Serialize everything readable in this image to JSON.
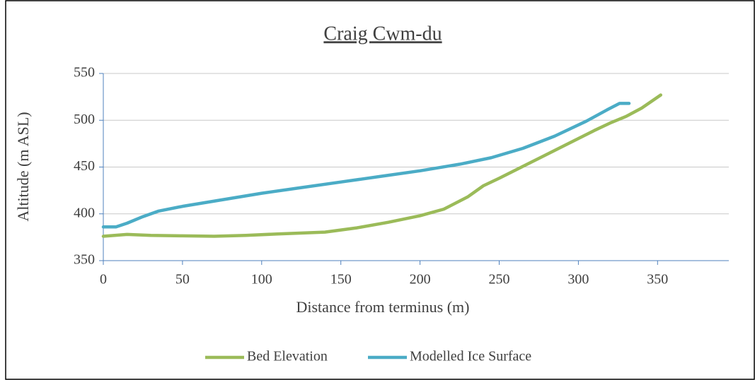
{
  "chart_data": {
    "type": "line",
    "title": "Craig Cwm-du",
    "x_label": "Distance from terminus (m)",
    "y_label": "Altitude (m ASL)",
    "xlim": [
      0,
      395
    ],
    "xticks": [
      0,
      50,
      100,
      150,
      200,
      250,
      300,
      350
    ],
    "ylim": [
      350,
      550
    ],
    "yticks": [
      350,
      400,
      450,
      500,
      550
    ],
    "grid": true,
    "legend": "bottom",
    "series": [
      {
        "name": "Bed Elevation",
        "color": "#9bbb59",
        "x": [
          0,
          15,
          30,
          50,
          70,
          90,
          110,
          140,
          160,
          180,
          200,
          215,
          230,
          240,
          250,
          270,
          290,
          310,
          320,
          330,
          340,
          352
        ],
        "values": [
          376,
          378,
          377,
          376.5,
          376,
          377,
          378.5,
          380.5,
          385,
          391,
          398,
          405,
          418,
          430,
          438,
          455,
          472,
          489,
          497,
          504,
          513,
          527
        ]
      },
      {
        "name": "Modelled Ice Surface",
        "color": "#4bacc6",
        "x": [
          0,
          8,
          15,
          25,
          35,
          50,
          75,
          100,
          125,
          150,
          175,
          200,
          225,
          245,
          265,
          285,
          305,
          318,
          326,
          332
        ],
        "values": [
          386,
          386,
          390,
          397,
          403,
          408,
          415,
          422,
          428,
          434,
          440,
          446,
          453,
          460,
          470,
          483,
          499,
          511,
          518,
          518
        ]
      }
    ]
  }
}
